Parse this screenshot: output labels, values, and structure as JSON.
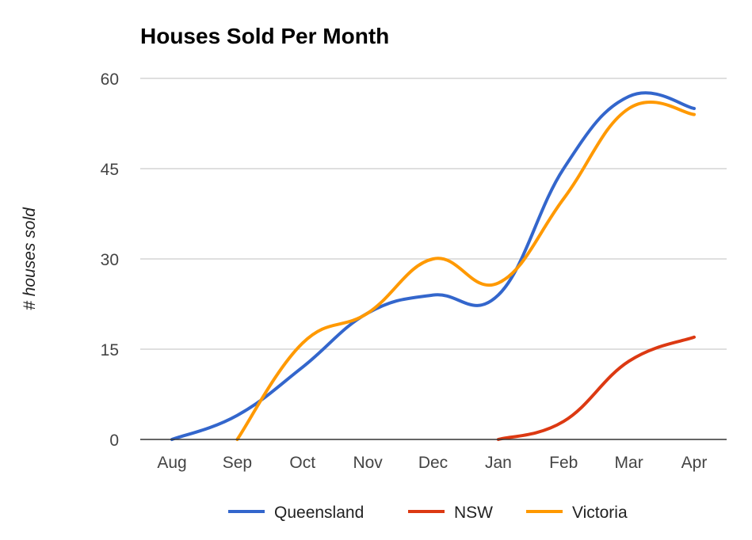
{
  "chart_data": {
    "type": "line",
    "title": "Houses Sold Per Month",
    "xlabel": "",
    "ylabel": "# houses sold",
    "categories": [
      "Aug",
      "Sep",
      "Oct",
      "Nov",
      "Dec",
      "Jan",
      "Feb",
      "Mar",
      "Apr"
    ],
    "ylim": [
      0,
      60
    ],
    "yticks": [
      0,
      15,
      30,
      45,
      60
    ],
    "grid": true,
    "legend_position": "bottom",
    "smooth": true,
    "series": [
      {
        "name": "Queensland",
        "color": "#3366cc",
        "values": [
          0,
          4,
          12,
          21,
          24,
          24,
          45,
          57,
          55
        ]
      },
      {
        "name": "NSW",
        "color": "#dc3912",
        "values": [
          null,
          null,
          null,
          null,
          null,
          0,
          3,
          13,
          17
        ]
      },
      {
        "name": "Victoria",
        "color": "#ff9900",
        "values": [
          null,
          0,
          16,
          21,
          30,
          26,
          40,
          55,
          54
        ]
      }
    ]
  }
}
